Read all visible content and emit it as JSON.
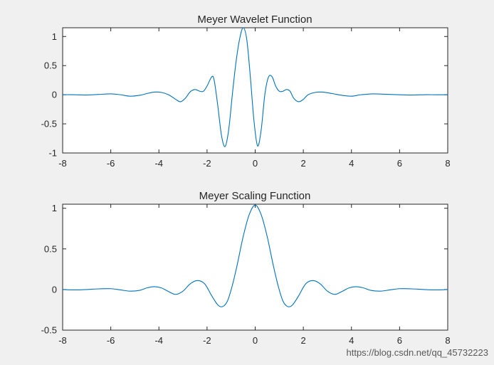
{
  "chart_data": [
    {
      "type": "line",
      "title": "Meyer Wavelet Function",
      "xlim": [
        -8,
        8
      ],
      "ylim": [
        -1,
        1.15
      ],
      "xticks": [
        "-8",
        "-6",
        "-4",
        "-2",
        "0",
        "2",
        "4",
        "6",
        "8"
      ],
      "yticks": [
        "-1",
        "-0.5",
        "0",
        "0.5",
        "1"
      ],
      "grid": false,
      "series": [
        {
          "color": "#0072bd",
          "x": [
            -8,
            -7.5,
            -7,
            -6.5,
            -6,
            -5.6,
            -5.2,
            -4.8,
            -4.5,
            -4.2,
            -3.9,
            -3.6,
            -3.3,
            -3.1,
            -2.9,
            -2.7,
            -2.5,
            -2.3,
            -2.15,
            -2.0,
            -1.8,
            -1.7,
            -1.55,
            -1.4,
            -1.25,
            -1.1,
            -0.95,
            -0.8,
            -0.65,
            -0.5,
            -0.35,
            -0.2,
            -0.05,
            0.1,
            0.25,
            0.4,
            0.55,
            0.7,
            0.85,
            1.0,
            1.15,
            1.3,
            1.45,
            1.6,
            1.8,
            2.0,
            2.2,
            2.5,
            2.8,
            3.2,
            3.6,
            4.0,
            4.4,
            4.9,
            5.4,
            6.0,
            6.5,
            7.0,
            7.5,
            8
          ],
          "values": [
            0.0,
            0.0,
            -0.005,
            0.005,
            0.015,
            0.0,
            -0.025,
            -0.01,
            0.02,
            0.045,
            0.04,
            0.0,
            -0.08,
            -0.12,
            -0.06,
            0.05,
            0.09,
            0.06,
            0.06,
            0.15,
            0.31,
            0.24,
            -0.2,
            -0.7,
            -0.89,
            -0.6,
            0.0,
            0.55,
            0.95,
            1.15,
            0.95,
            0.3,
            -0.45,
            -0.88,
            -0.6,
            0.0,
            0.3,
            0.31,
            0.15,
            0.06,
            0.06,
            0.09,
            0.06,
            -0.06,
            -0.12,
            -0.08,
            0.0,
            0.04,
            0.045,
            0.02,
            -0.01,
            -0.025,
            0.0,
            0.015,
            0.008,
            0.0,
            -0.005,
            0.0,
            0.0,
            0.0
          ]
        }
      ]
    },
    {
      "type": "line",
      "title": "Meyer Scaling Function",
      "xlim": [
        -8,
        8
      ],
      "ylim": [
        -0.5,
        1.05
      ],
      "xticks": [
        "-8",
        "-6",
        "-4",
        "-2",
        "0",
        "2",
        "4",
        "6",
        "8"
      ],
      "yticks": [
        "-0.5",
        "0",
        "0.5",
        "1"
      ],
      "grid": false,
      "series": [
        {
          "color": "#0072bd",
          "x": [
            -8,
            -7.5,
            -7,
            -6.5,
            -6,
            -5.6,
            -5.2,
            -4.8,
            -4.5,
            -4.2,
            -3.9,
            -3.6,
            -3.3,
            -3.0,
            -2.7,
            -2.4,
            -2.1,
            -1.8,
            -1.55,
            -1.35,
            -1.15,
            -0.95,
            -0.75,
            -0.5,
            -0.25,
            0,
            0.25,
            0.5,
            0.75,
            0.95,
            1.15,
            1.35,
            1.55,
            1.8,
            2.1,
            2.4,
            2.7,
            3.0,
            3.3,
            3.6,
            3.9,
            4.2,
            4.5,
            4.8,
            5.2,
            5.6,
            6.0,
            6.5,
            7.0,
            7.5,
            8
          ],
          "values": [
            0.0,
            -0.005,
            0.0,
            0.008,
            0.01,
            -0.005,
            -0.02,
            -0.01,
            0.02,
            0.035,
            0.02,
            -0.025,
            -0.06,
            -0.02,
            0.07,
            0.11,
            0.07,
            -0.08,
            -0.19,
            -0.21,
            -0.14,
            0.05,
            0.3,
            0.65,
            0.92,
            1.04,
            0.92,
            0.65,
            0.3,
            0.05,
            -0.14,
            -0.21,
            -0.19,
            -0.08,
            0.07,
            0.11,
            0.07,
            -0.02,
            -0.06,
            -0.025,
            0.02,
            0.035,
            0.02,
            -0.01,
            -0.02,
            -0.005,
            0.01,
            0.008,
            0.0,
            -0.005,
            0.0
          ]
        }
      ]
    }
  ],
  "watermark": "https://blog.csdn.net/qq_45732223"
}
